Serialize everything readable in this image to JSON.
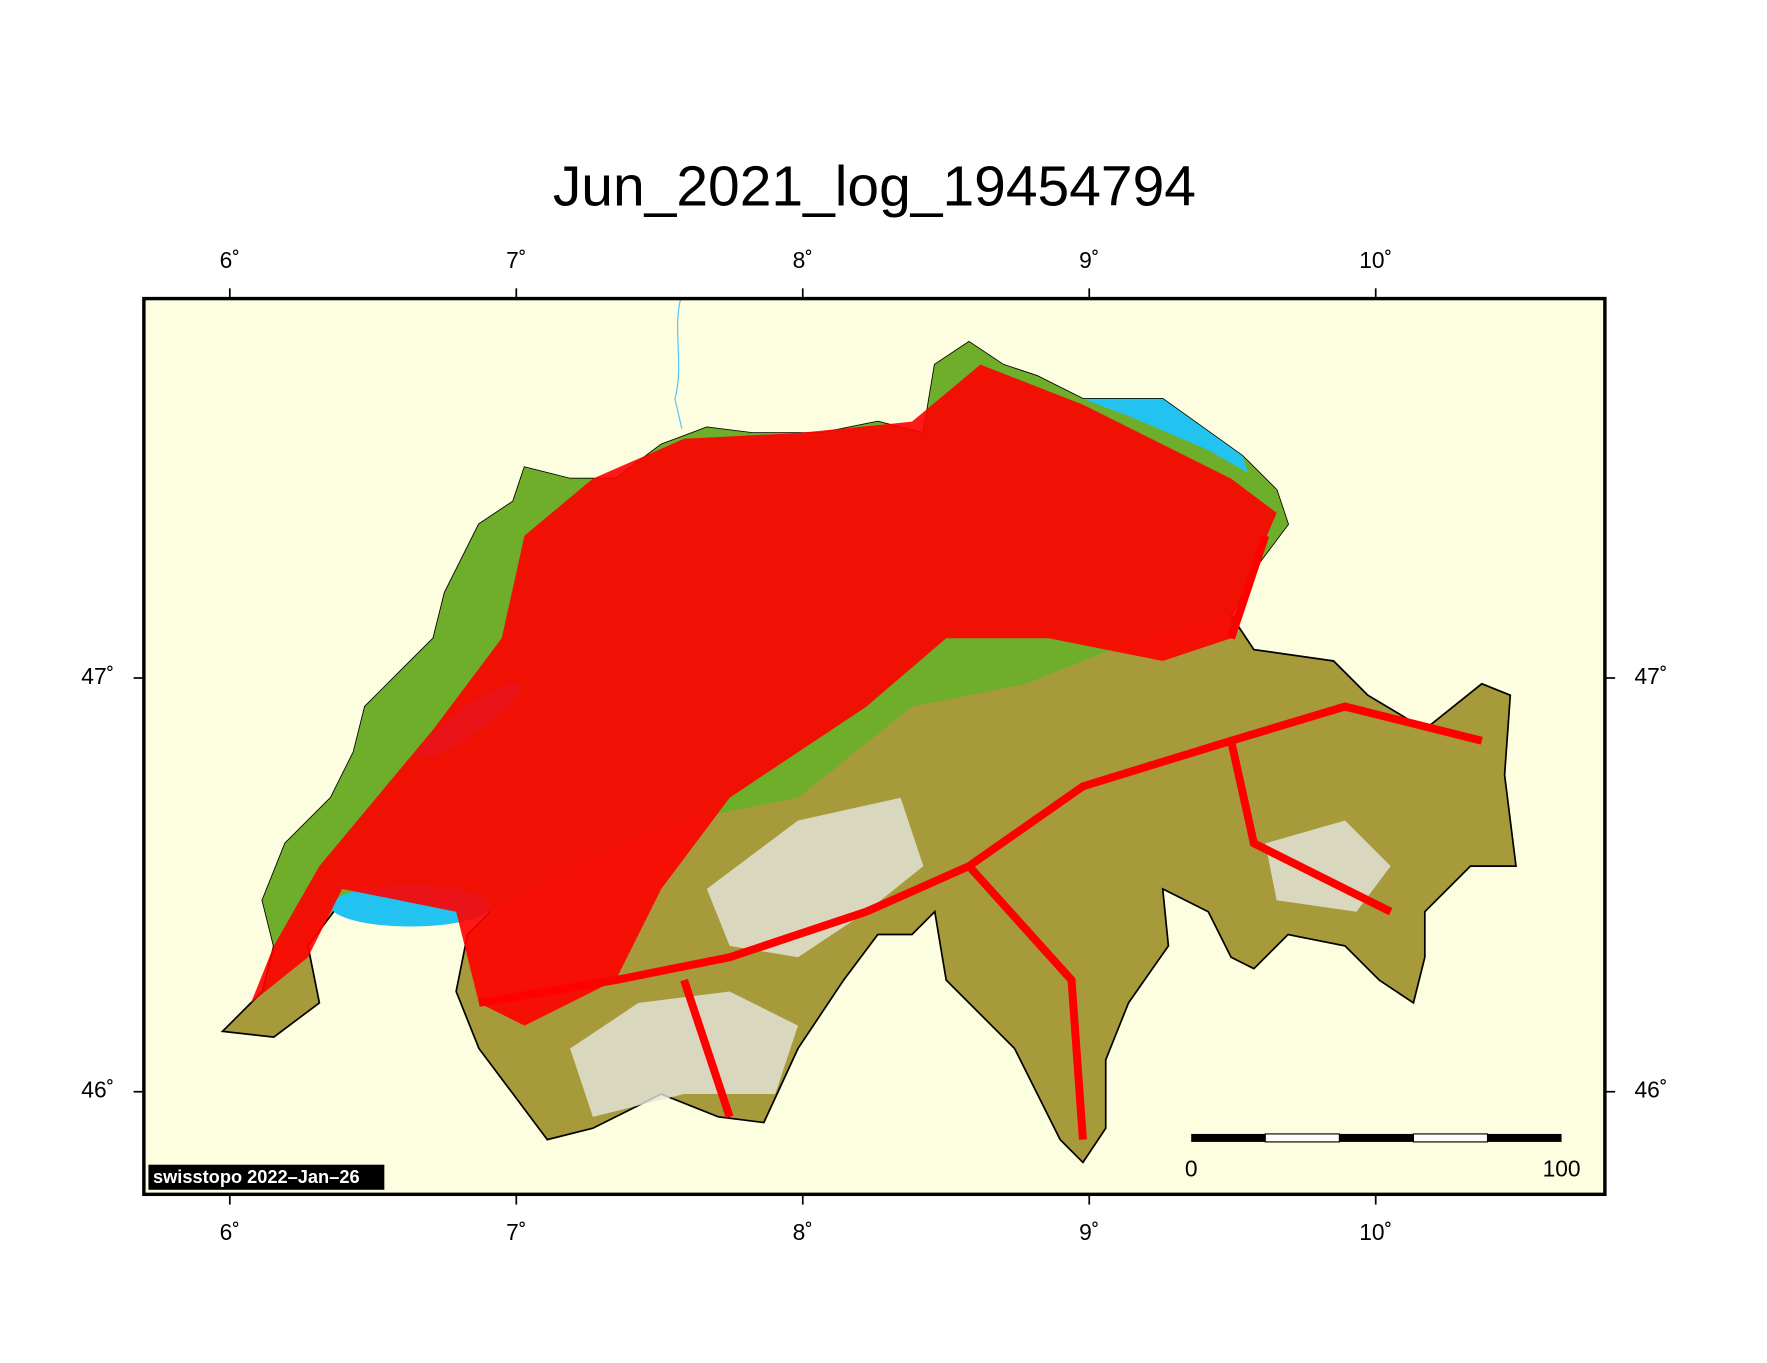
{
  "chart_data": {
    "type": "map",
    "title": "Jun_2021_log_19454794",
    "xlim": [
      5.7,
      10.8
    ],
    "ylim": [
      45.752,
      47.917
    ],
    "xticks": [
      {
        "value": 6,
        "label": "6˚"
      },
      {
        "value": 7,
        "label": "7˚"
      },
      {
        "value": 8,
        "label": "8˚"
      },
      {
        "value": 9,
        "label": "9˚"
      },
      {
        "value": 10,
        "label": "10˚"
      }
    ],
    "yticks": [
      {
        "value": 46,
        "label": "46˚"
      },
      {
        "value": 47,
        "label": "47˚"
      }
    ],
    "scale_bar": {
      "start": "0",
      "end": "100"
    },
    "credit": "swisstopo 2022–Jan–26"
  }
}
